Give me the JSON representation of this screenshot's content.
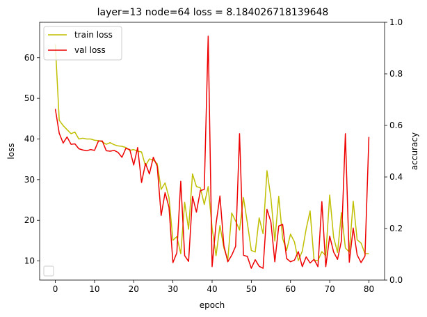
{
  "chart_data": {
    "type": "line",
    "title": "layer=13 node=64 loss = 8.184026718139648",
    "xlabel": "epoch",
    "ylabel": "loss",
    "ylabel_right": "accuracy",
    "xlim": [
      -4,
      84
    ],
    "ylim": [
      5.3,
      68.7
    ],
    "ylim_right": [
      0,
      1
    ],
    "xticks": [
      "0",
      "10",
      "20",
      "30",
      "40",
      "50",
      "60",
      "70",
      "80"
    ],
    "yticks": [
      "10",
      "20",
      "30",
      "40",
      "50",
      "60"
    ],
    "yticks_right": [
      "0.0",
      "0.2",
      "0.4",
      "0.6",
      "0.8",
      "1.0"
    ],
    "grid": false,
    "legend_position": "upper-left",
    "series": [
      {
        "name": "train loss",
        "color": "#bfbf00",
        "x": [
          0,
          1,
          2,
          3,
          4,
          5,
          6,
          7,
          8,
          9,
          10,
          11,
          12,
          13,
          14,
          15,
          16,
          17,
          18,
          19,
          20,
          21,
          22,
          23,
          24,
          25,
          26,
          27,
          28,
          29,
          30,
          31,
          32,
          33,
          34,
          35,
          36,
          37,
          38,
          39,
          40,
          41,
          42,
          43,
          44,
          45,
          46,
          47,
          48,
          49,
          50,
          51,
          52,
          53,
          54,
          55,
          56,
          57,
          58,
          59,
          60,
          61,
          62,
          63,
          64,
          65,
          66,
          67,
          68,
          69,
          70,
          71,
          72,
          73,
          74,
          75,
          76,
          77,
          78,
          79,
          80
        ],
        "y": [
          63.3,
          44.6,
          43.3,
          42.3,
          41.3,
          41.7,
          40.0,
          40.2,
          40.0,
          40.0,
          39.7,
          39.6,
          39.3,
          38.7,
          39.1,
          38.6,
          38.3,
          38.2,
          37.9,
          37.2,
          37.4,
          37.0,
          36.8,
          33.4,
          35.1,
          34.8,
          33.9,
          27.6,
          29.2,
          25.6,
          15.1,
          16.0,
          11.8,
          24.4,
          17.8,
          31.4,
          28.3,
          28.0,
          23.9,
          28.3,
          18.1,
          11.3,
          18.7,
          13.2,
          10.3,
          21.8,
          19.8,
          17.6,
          25.6,
          19.3,
          12.6,
          12.2,
          20.6,
          16.7,
          32.2,
          25.5,
          14.9,
          25.9,
          15.5,
          12.6,
          16.6,
          14.7,
          10.1,
          12.4,
          17.9,
          22.3,
          10.2,
          10.1,
          12.3,
          11.3,
          26.2,
          15.8,
          12.1,
          21.9,
          13.2,
          12.2,
          24.7,
          15.2,
          14.4,
          11.8,
          11.8
        ]
      },
      {
        "name": "val loss",
        "color": "#ee0000",
        "x": [
          0,
          1,
          2,
          3,
          4,
          5,
          6,
          7,
          8,
          9,
          10,
          11,
          12,
          13,
          14,
          15,
          16,
          17,
          18,
          19,
          20,
          21,
          22,
          23,
          24,
          25,
          26,
          27,
          28,
          29,
          30,
          31,
          32,
          33,
          34,
          35,
          36,
          37,
          38,
          39,
          40,
          41,
          42,
          43,
          44,
          45,
          46,
          47,
          48,
          49,
          50,
          51,
          52,
          53,
          54,
          55,
          56,
          57,
          58,
          59,
          60,
          61,
          62,
          63,
          64,
          65,
          66,
          67,
          68,
          69,
          70,
          71,
          72,
          73,
          74,
          75,
          76,
          77,
          78,
          79,
          80
        ],
        "y": [
          47.4,
          41.4,
          39.0,
          40.5,
          38.7,
          38.8,
          37.6,
          37.3,
          37.1,
          37.4,
          37.2,
          39.5,
          39.5,
          37.1,
          37.0,
          37.2,
          36.7,
          35.5,
          37.7,
          37.4,
          33.6,
          37.9,
          29.3,
          34.0,
          31.4,
          35.5,
          33.3,
          21.2,
          26.8,
          23.2,
          9.6,
          12.0,
          29.6,
          11.3,
          9.9,
          25.9,
          22.0,
          27.3,
          27.6,
          65.3,
          8.6,
          19.1,
          26.0,
          13.8,
          9.8,
          11.4,
          13.6,
          41.3,
          11.4,
          11.1,
          8.2,
          10.3,
          8.7,
          8.2,
          22.7,
          19.6,
          9.8,
          18.6,
          19.0,
          10.6,
          9.8,
          10.2,
          12.3,
          8.6,
          11.0,
          9.5,
          10.4,
          8.6,
          24.6,
          8.6,
          16.1,
          12.2,
          10.4,
          15.0,
          41.3,
          9.7,
          18.1,
          11.5,
          9.6,
          11.2,
          40.5
        ]
      }
    ]
  }
}
